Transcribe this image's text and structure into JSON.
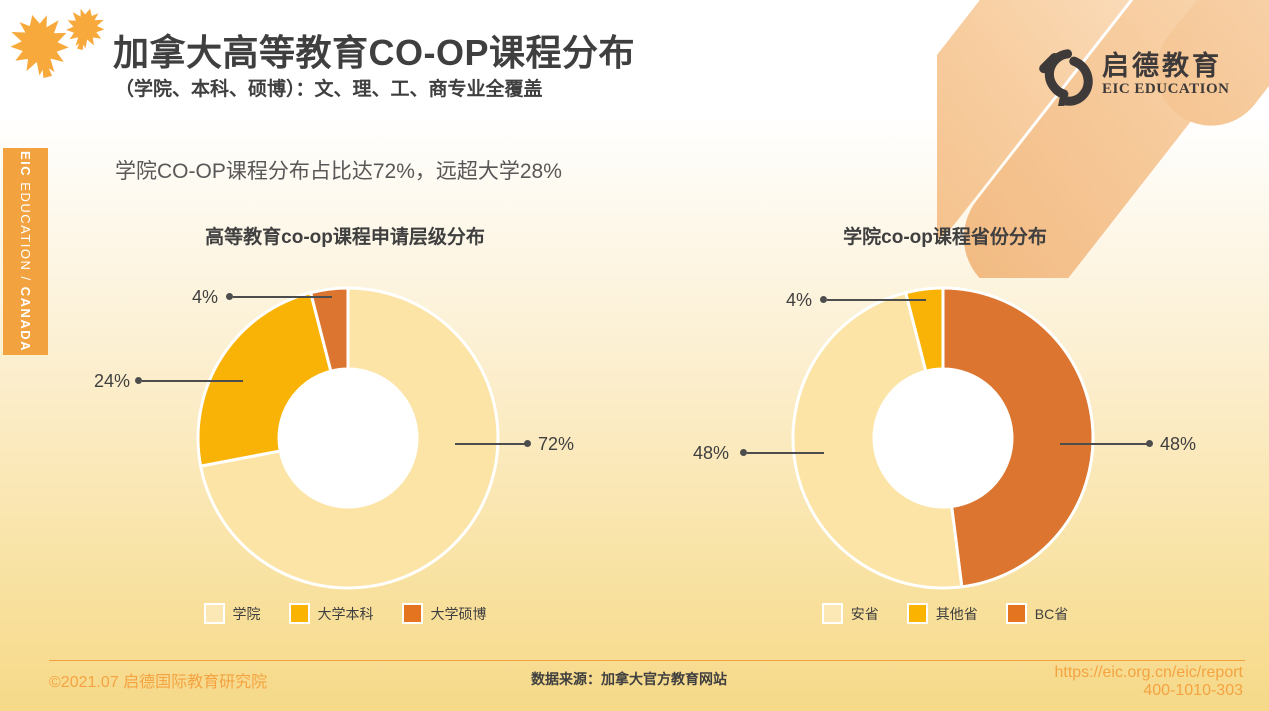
{
  "page": {
    "title": "加拿大高等教育CO-OP课程分布",
    "subtitle": "（学院、本科、硕博）：文、理、工、商专业全覆盖",
    "insight": "学院CO-OP课程分布占比达72%，远超大学28%"
  },
  "brand": {
    "logo_cn": "启德教育",
    "logo_en": "EIC EDUCATION",
    "sidebar": {
      "bold_left": "EIC",
      "middle": " EDUCATION / ",
      "bold_right": "CANADA"
    }
  },
  "colors": {
    "cream_slice": "#FBE4A6",
    "amber_slice": "#F9B307",
    "orange_slice": "#DC7530",
    "sidebar_tab": "#F2A340",
    "leaf_orange": "#F8A93C",
    "accent_text_orange": "#F4A341",
    "dark_text": "#3F3F3F"
  },
  "chart_data": [
    {
      "type": "pie",
      "donut": true,
      "title": "高等教育co-op课程申请层级分布",
      "start_angle_deg": 0,
      "direction": "clockwise-from-top",
      "slices": [
        {
          "name": "学院",
          "value": 72,
          "label": "72%",
          "color": "#FBE4A6"
        },
        {
          "name": "大学本科",
          "value": 24,
          "label": "24%",
          "color": "#F9B307"
        },
        {
          "name": "大学硕博",
          "value": 4,
          "label": "4%",
          "color": "#DC7530"
        }
      ],
      "legend": [
        {
          "label": "学院",
          "color": "#FBE8B4"
        },
        {
          "label": "大学本科",
          "color": "#FAB400"
        },
        {
          "label": "大学硕博",
          "color": "#E4741F"
        }
      ],
      "legend_position": "bottom"
    },
    {
      "type": "pie",
      "donut": true,
      "title": "学院co-op课程省份分布",
      "start_angle_deg": 0,
      "direction": "clockwise-from-top",
      "slices": [
        {
          "name": "BC省",
          "value": 48,
          "label": "48%",
          "color": "#DC7530"
        },
        {
          "name": "安省",
          "value": 48,
          "label": "48%",
          "color": "#FBE4A6"
        },
        {
          "name": "其他省",
          "value": 4,
          "label": "4%",
          "color": "#F9B307"
        }
      ],
      "legend": [
        {
          "label": "安省",
          "color": "#FBE8B4"
        },
        {
          "label": "其他省",
          "color": "#FAB400"
        },
        {
          "label": "BC省",
          "color": "#E4741F"
        }
      ],
      "legend_position": "bottom"
    }
  ],
  "footer": {
    "copyright": "©2021.07 启德国际教育研究院",
    "source": "数据来源：加拿大官方教育网站",
    "url": "https://eic.org.cn/eic/report",
    "phone": "400-1010-303"
  }
}
